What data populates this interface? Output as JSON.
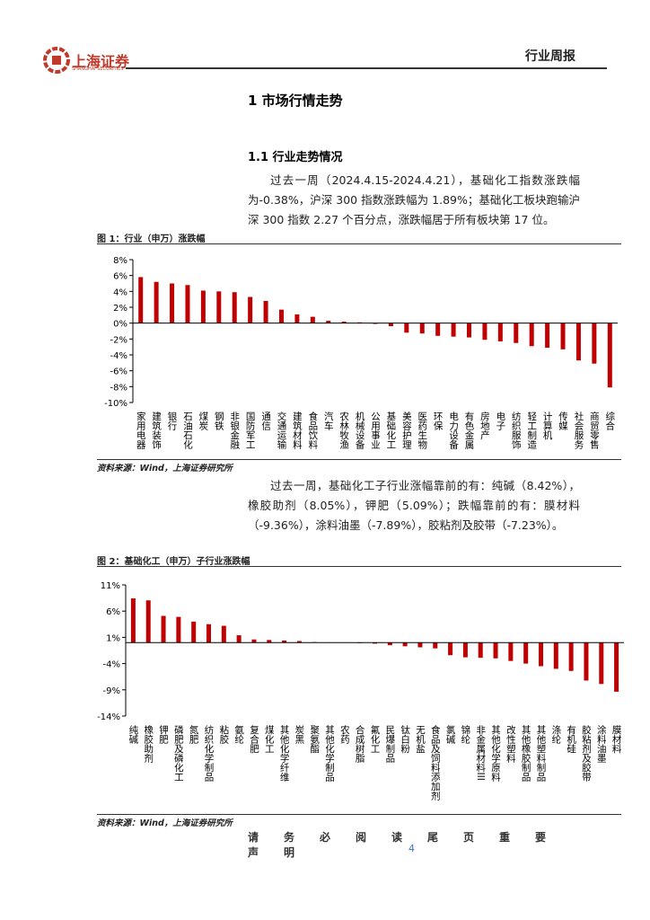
{
  "header": {
    "logo_cn": "上海证券",
    "logo_en": "SHANGHAI SECURITIES",
    "report_type": "行业周报"
  },
  "section_title": "1 市场行情走势",
  "subsection_title": "1.1 行业走势情况",
  "paragraph1": "过去一周（2024.4.15-2024.4.21），基础化工指数涨跌幅为-0.38%，沪深 300 指数涨跌幅为 1.89%；基础化工板块跑输沪深 300 指数 2.27 个百分点，涨跌幅居于所有板块第 17 位。",
  "paragraph2": "过去一周，基础化工子行业涨幅靠前的有：纯碱（8.42%），橡胶助剂（8.05%），钾肥（5.09%）；跌幅靠前的有：膜材料（-9.36%），涂料油墨（-7.89%），胶粘剂及胶带（-7.23%）。",
  "chart_data": [
    {
      "type": "bar",
      "title": "图 1：行业（申万）涨跌幅",
      "source": "资料来源：Wind，上海证券研究所",
      "color": "#c00000",
      "categories": [
        "家用电器",
        "建筑装饰",
        "银行",
        "石油石化",
        "煤炭",
        "钢铁",
        "非银金融",
        "国防军工",
        "通信",
        "交通运输",
        "建筑材料",
        "食品饮料",
        "汽车",
        "农林牧渔",
        "机械设备",
        "公用事业",
        "基础化工",
        "美容护理",
        "医药生物",
        "环保",
        "电力设备",
        "有色金属",
        "房地产",
        "电子",
        "纺织服饰",
        "轻工制造",
        "计算机",
        "传媒",
        "社会服务",
        "商贸零售",
        "综合"
      ],
      "values": [
        5.8,
        5.2,
        5.0,
        4.8,
        4.1,
        4.0,
        3.9,
        3.3,
        2.8,
        1.7,
        1.1,
        0.8,
        0.3,
        0.2,
        0.1,
        -0.1,
        -0.38,
        -1.2,
        -1.3,
        -1.6,
        -1.7,
        -1.8,
        -2.1,
        -2.3,
        -2.5,
        -2.9,
        -3.1,
        -3.3,
        -4.7,
        -5.1,
        -8.1
      ],
      "ylim": [
        -10,
        8
      ],
      "yticks": [
        {
          "value": 8,
          "label": "8%"
        },
        {
          "value": 6,
          "label": "6%"
        },
        {
          "value": 4,
          "label": "4%"
        },
        {
          "value": 2,
          "label": "2%"
        },
        {
          "value": 0,
          "label": "0%"
        },
        {
          "value": -2,
          "label": "-2%"
        },
        {
          "value": -4,
          "label": "-4%"
        },
        {
          "value": -6,
          "label": "-6%"
        },
        {
          "value": -8,
          "label": "-8%"
        },
        {
          "value": -10,
          "label": "-10%"
        }
      ]
    },
    {
      "type": "bar",
      "title": "图 2：基础化工（申万）子行业涨跌幅",
      "source": "资料来源：Wind，上海证券研究所",
      "color": "#c00000",
      "categories": [
        "纯碱",
        "橡胶助剂",
        "钾肥",
        "磷肥及磷化工",
        "氮肥",
        "纺织化学制品",
        "粘胶",
        "氨纶",
        "复合肥",
        "煤化工",
        "其他化学纤维",
        "炭黑",
        "聚氨酯",
        "其他化学制品",
        "农药",
        "合成树脂",
        "氟化工",
        "民爆制品",
        "钛白粉",
        "无机盐",
        "食品及饲料添加剂",
        "氯碱",
        "锦纶",
        "非金属材料III",
        "其他化学原料",
        "改性塑料",
        "其他橡胶制品",
        "其他塑料制品",
        "涤纶",
        "有机硅",
        "胶粘剂及胶带",
        "涂料油墨",
        "膜材料"
      ],
      "values": [
        8.42,
        8.05,
        5.09,
        4.9,
        4.0,
        3.5,
        3.2,
        1.4,
        0.6,
        0.5,
        0.4,
        0.3,
        0.1,
        0.05,
        -0.05,
        -0.1,
        -0.2,
        -0.5,
        -0.7,
        -0.9,
        -1.1,
        -2.4,
        -2.8,
        -2.9,
        -3.0,
        -3.5,
        -4.0,
        -4.5,
        -5.0,
        -5.4,
        -7.23,
        -7.89,
        -9.36
      ],
      "ylim": [
        -14,
        11
      ],
      "yticks": [
        {
          "value": 11,
          "label": "11%"
        },
        {
          "value": 6,
          "label": "6%"
        },
        {
          "value": 1,
          "label": "1%"
        },
        {
          "value": -4,
          "label": "-4%"
        },
        {
          "value": -9,
          "label": "-9%"
        },
        {
          "value": -14,
          "label": "-14%"
        }
      ]
    }
  ],
  "footer": {
    "disclaimer": "请务必阅读尾页重要声明",
    "page": "4"
  }
}
